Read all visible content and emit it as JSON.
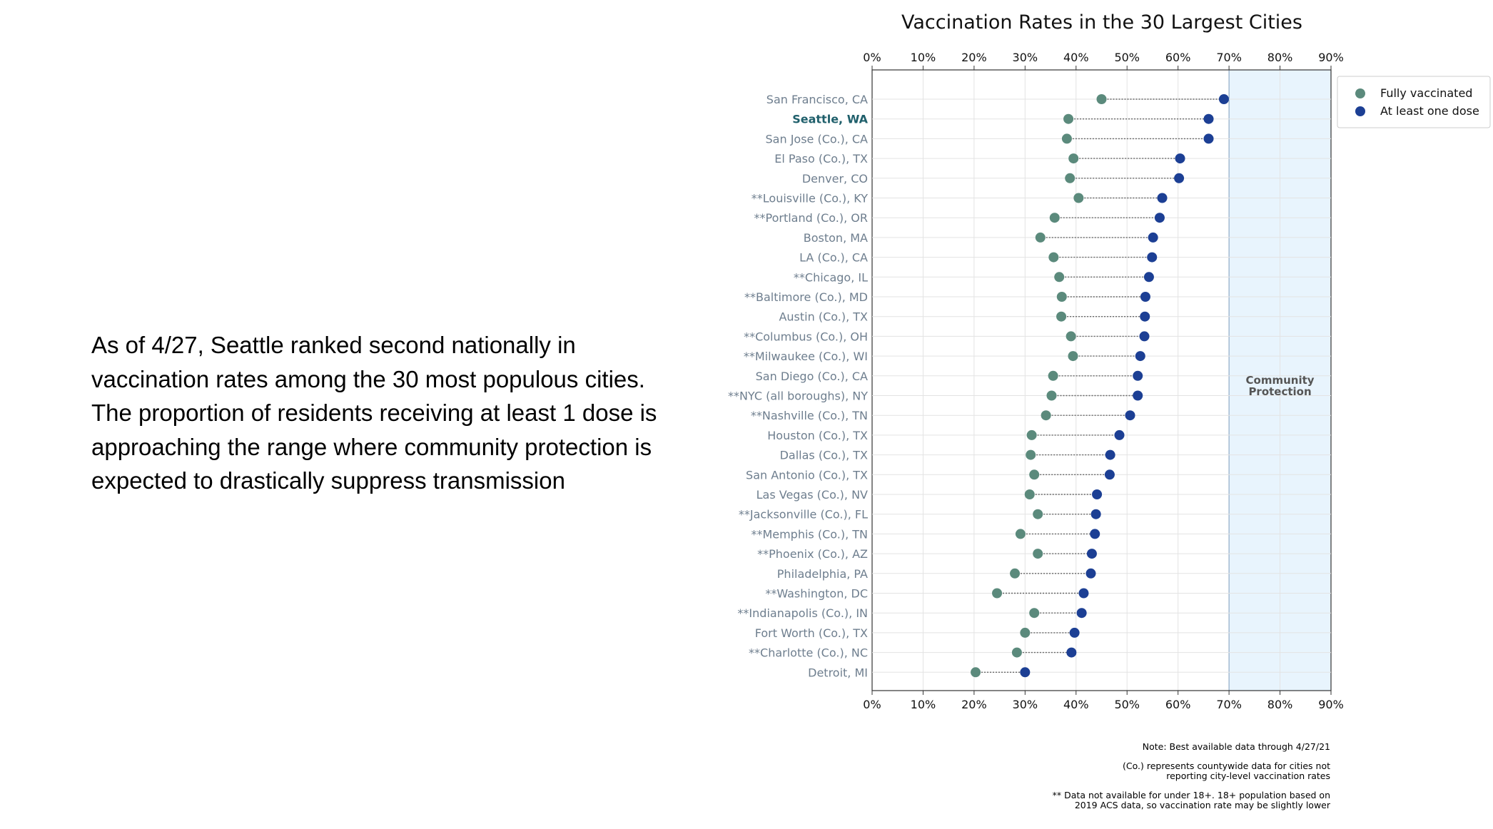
{
  "summary": "As of 4/27, Seattle ranked second nationally in vaccination rates among the 30 most populous cities. The proportion of residents receiving at least 1 dose is approaching the range where community protection is expected to drastically suppress transmission",
  "notes": {
    "note1": "Note: Best available data through 4/27/21",
    "note2": "(Co.) represents countywide data for cities not reporting city-level vaccination rates",
    "note3": "** Data not available for under 18+. 18+ population based on 2019 ACS data, so vaccination rate may be slightly lower"
  },
  "chart_data": {
    "type": "dumbbell",
    "title": "Vaccination Rates in the 30 Largest Cities",
    "xlim": [
      0,
      90
    ],
    "xticks": [
      "0%",
      "10%",
      "20%",
      "30%",
      "40%",
      "50%",
      "60%",
      "70%",
      "80%",
      "90%"
    ],
    "grid": true,
    "highlight_region": {
      "x_range": [
        70,
        90
      ],
      "label": "Community Protection",
      "color": "#e8f4fd"
    },
    "legend": {
      "placement": "top-right-outside",
      "entries": [
        "Fully vaccinated",
        "At least one dose"
      ]
    },
    "series": [
      {
        "name": "Fully vaccinated",
        "color": "#5b8a7c"
      },
      {
        "name": "At least one dose",
        "color": "#1c3f94"
      }
    ],
    "categories": [
      "San Francisco, CA",
      "Seattle, WA",
      "San Jose (Co.), CA",
      "El Paso (Co.), TX",
      "Denver, CO",
      "**Louisville (Co.), KY",
      "**Portland (Co.), OR",
      "Boston, MA",
      "LA (Co.), CA",
      "**Chicago, IL",
      "**Baltimore (Co.), MD",
      "Austin (Co.), TX",
      "**Columbus (Co.), OH",
      "**Milwaukee (Co.), WI",
      "San Diego (Co.), CA",
      "**NYC (all boroughs), NY",
      "**Nashville (Co.), TN",
      "Houston (Co.), TX",
      "Dallas (Co.), TX",
      "San Antonio (Co.), TX",
      "Las Vegas (Co.), NV",
      "**Jacksonville (Co.), FL",
      "**Memphis (Co.), TN",
      "**Phoenix (Co.), AZ",
      "Philadelphia, PA",
      "**Washington, DC",
      "**Indianapolis (Co.), IN",
      "Fort Worth (Co.), TX",
      "**Charlotte (Co.), NC",
      "Detroit, MI"
    ],
    "highlighted_category": "Seattle, WA",
    "fully_vaccinated": [
      45,
      38.5,
      38.2,
      39.5,
      38.8,
      40.5,
      35.8,
      33,
      35.6,
      36.7,
      37.2,
      37.1,
      39,
      39.4,
      35.5,
      35.2,
      34.1,
      31.3,
      31.1,
      31.8,
      30.9,
      32.5,
      29.1,
      32.5,
      28,
      24.5,
      31.8,
      30,
      28.4,
      20.3
    ],
    "at_least_one_dose": [
      69,
      66,
      66,
      60.4,
      60.2,
      56.9,
      56.4,
      55.1,
      54.9,
      54.3,
      53.6,
      53.5,
      53.4,
      52.6,
      52.1,
      52.1,
      50.6,
      48.5,
      46.7,
      46.6,
      44.1,
      43.9,
      43.7,
      43.1,
      42.9,
      41.5,
      41.1,
      39.7,
      39.1,
      30
    ]
  }
}
